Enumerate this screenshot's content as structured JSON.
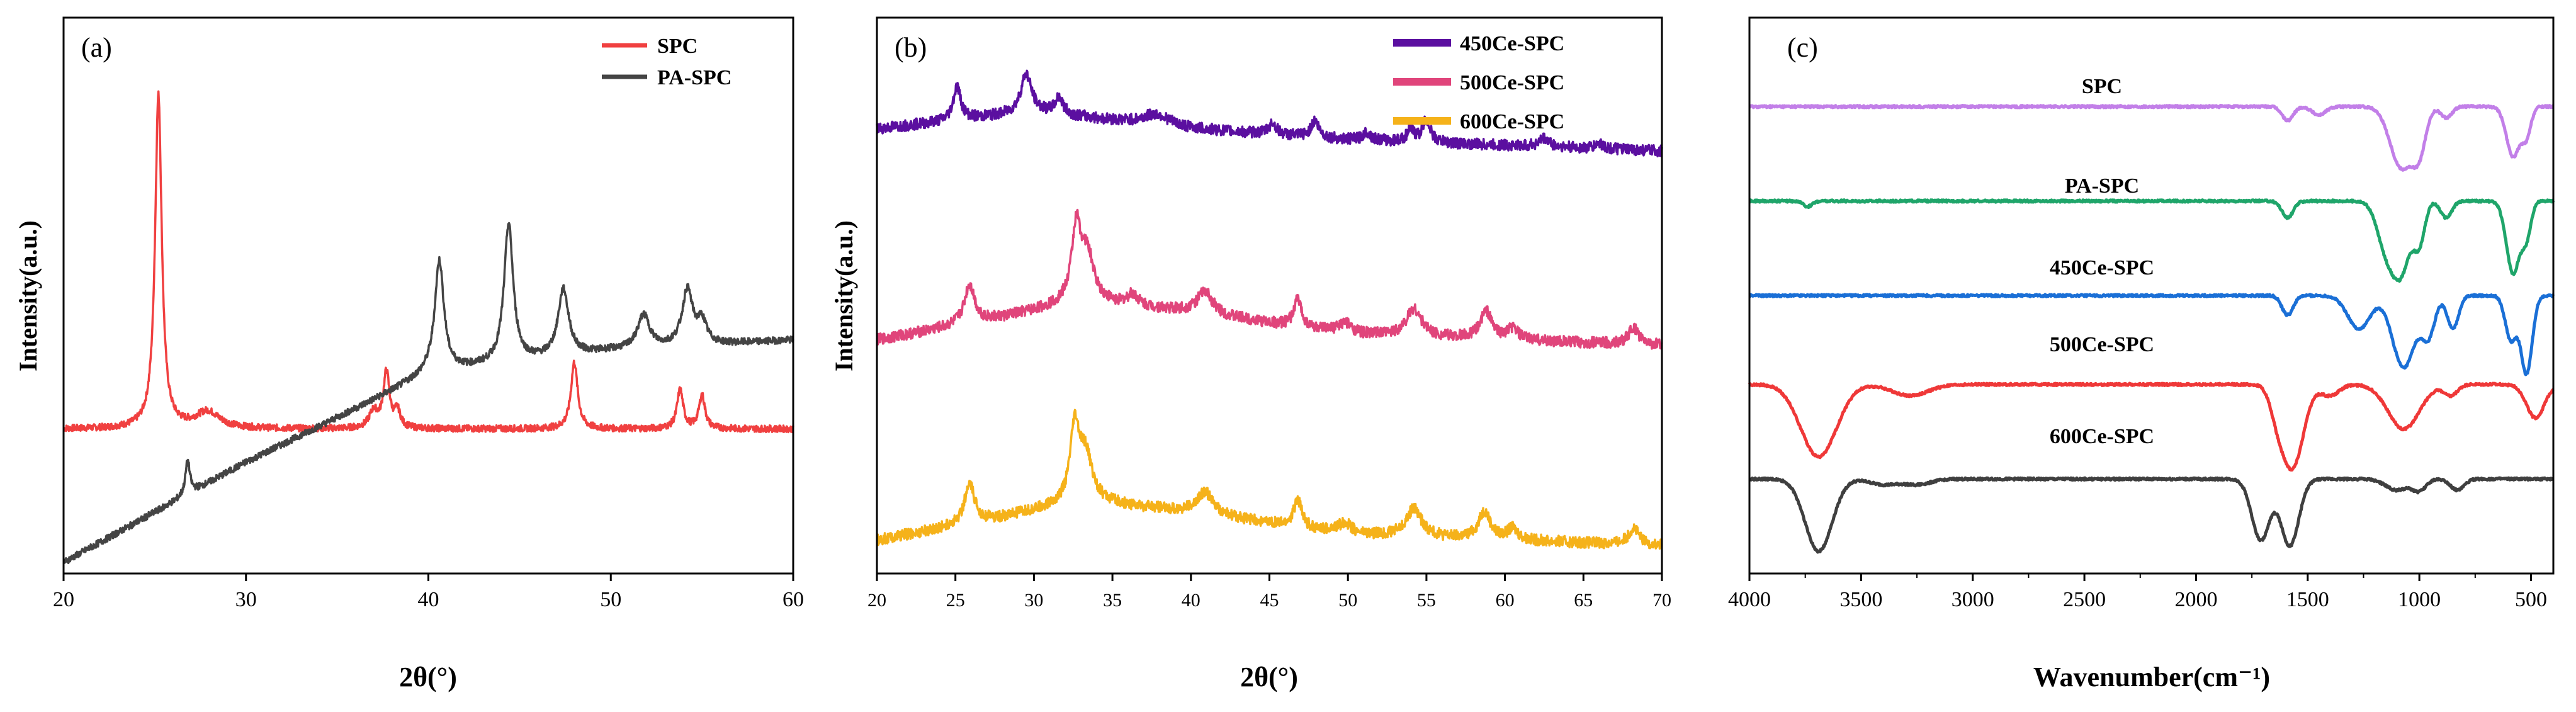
{
  "chart_data": [
    {
      "panel": "(a)",
      "type": "line",
      "xlabel": "2θ(°)",
      "ylabel": "Intensity(a.u.)",
      "xlim": [
        20,
        60
      ],
      "xticks": [
        "20",
        "30",
        "40",
        "50",
        "60"
      ],
      "legend": "top-right",
      "series": [
        {
          "name": "SPC",
          "color": "#f04040",
          "baseline": 0.26,
          "peaks": [
            [
              25.2,
              0.6,
              0.22
            ],
            [
              27.9,
              0.03,
              0.8
            ],
            [
              37.0,
              0.03,
              0.3
            ],
            [
              37.7,
              0.1,
              0.2
            ],
            [
              38.3,
              0.03,
              0.2
            ],
            [
              48.0,
              0.12,
              0.22
            ],
            [
              53.8,
              0.07,
              0.2
            ],
            [
              55.0,
              0.06,
              0.2
            ]
          ]
        },
        {
          "name": "PA-SPC",
          "color": "#444444",
          "baseline": 0.0,
          "trend": [
            [
              20,
              0.02
            ],
            [
              30,
              0.2
            ],
            [
              40,
              0.36
            ],
            [
              50,
              0.4
            ],
            [
              60,
              0.42
            ]
          ],
          "peaks": [
            [
              26.8,
              0.06,
              0.15
            ],
            [
              40.6,
              0.2,
              0.3
            ],
            [
              44.4,
              0.25,
              0.3
            ],
            [
              47.4,
              0.12,
              0.35
            ],
            [
              51.8,
              0.06,
              0.4
            ],
            [
              54.2,
              0.1,
              0.35
            ],
            [
              55.0,
              0.04,
              0.3
            ]
          ]
        }
      ]
    },
    {
      "panel": "(b)",
      "type": "line",
      "xlabel": "2θ(°)",
      "ylabel": "Intensity(a.u.)",
      "xlim": [
        20,
        70
      ],
      "xticks": [
        "20",
        "25",
        "30",
        "35",
        "40",
        "45",
        "50",
        "55",
        "60",
        "65",
        "70"
      ],
      "legend": "top-right",
      "series": [
        {
          "name": "450Ce-SPC",
          "color": "#5b0fa0",
          "baseline": 0.8,
          "trend": [
            [
              20,
              0.0
            ],
            [
              30,
              0.03
            ],
            [
              40,
              0.0
            ],
            [
              50,
              -0.02
            ],
            [
              70,
              -0.04
            ]
          ],
          "peaks": [
            [
              25.1,
              0.06,
              0.3
            ],
            [
              29.5,
              0.07,
              0.4
            ],
            [
              31.6,
              0.03,
              0.3
            ],
            [
              37.8,
              0.02,
              1.0
            ],
            [
              45.2,
              0.02,
              0.3
            ],
            [
              47.9,
              0.03,
              0.3
            ],
            [
              51.2,
              0.015,
              0.3
            ],
            [
              54.0,
              0.02,
              0.3
            ],
            [
              55.0,
              0.04,
              0.3
            ],
            [
              62.5,
              0.015,
              0.4
            ],
            [
              66.0,
              0.01,
              0.3
            ]
          ]
        },
        {
          "name": "500Ce-SPC",
          "color": "#e0457b",
          "baseline": 0.42,
          "trend": [
            [
              20,
              0.0
            ],
            [
              28,
              0.04
            ],
            [
              33,
              0.07
            ],
            [
              40,
              0.05
            ],
            [
              50,
              0.01
            ],
            [
              70,
              -0.01
            ]
          ],
          "peaks": [
            [
              25.9,
              0.07,
              0.4
            ],
            [
              32.7,
              0.13,
              0.35
            ],
            [
              33.4,
              0.08,
              0.5
            ],
            [
              36.3,
              0.02,
              0.4
            ],
            [
              40.9,
              0.04,
              0.6
            ],
            [
              46.8,
              0.05,
              0.3
            ],
            [
              49.8,
              0.02,
              0.5
            ],
            [
              54.2,
              0.05,
              0.6
            ],
            [
              58.8,
              0.05,
              0.45
            ],
            [
              60.5,
              0.02,
              0.4
            ],
            [
              68.2,
              0.03,
              0.4
            ]
          ]
        },
        {
          "name": "600Ce-SPC",
          "color": "#f5b21a",
          "baseline": 0.06,
          "trend": [
            [
              20,
              0.0
            ],
            [
              28,
              0.04
            ],
            [
              33,
              0.07
            ],
            [
              40,
              0.05
            ],
            [
              50,
              0.01
            ],
            [
              70,
              -0.01
            ]
          ],
          "peaks": [
            [
              25.9,
              0.07,
              0.4
            ],
            [
              32.6,
              0.13,
              0.35
            ],
            [
              33.3,
              0.08,
              0.5
            ],
            [
              40.9,
              0.04,
              0.6
            ],
            [
              46.8,
              0.05,
              0.3
            ],
            [
              49.8,
              0.02,
              0.5
            ],
            [
              54.2,
              0.05,
              0.6
            ],
            [
              58.7,
              0.05,
              0.45
            ],
            [
              60.5,
              0.02,
              0.4
            ],
            [
              68.2,
              0.03,
              0.4
            ]
          ]
        }
      ]
    },
    {
      "panel": "(c)",
      "type": "line",
      "xlabel": "Wavenumber(cm⁻¹)",
      "ylabel": "",
      "xlim": [
        4000,
        400
      ],
      "xticks": [
        "4000",
        "3500",
        "3000",
        "2500",
        "2000",
        "1500",
        "1000",
        "500"
      ],
      "legend": "none",
      "series": [
        {
          "name": "SPC",
          "label": "SPC",
          "color": "#c27fe8",
          "baseline": 0.84,
          "dips": [
            [
              1590,
              0.025,
              25
            ],
            [
              1450,
              0.015,
              30
            ],
            [
              1080,
              0.11,
              50
            ],
            [
              1000,
              0.07,
              30
            ],
            [
              880,
              0.02,
              25
            ],
            [
              580,
              0.09,
              30
            ],
            [
              520,
              0.05,
              20
            ]
          ]
        },
        {
          "name": "PA-SPC",
          "label": "PA-SPC",
          "color": "#1fa56a",
          "baseline": 0.67,
          "dips": [
            [
              3740,
              0.01,
              20
            ],
            [
              1590,
              0.03,
              25
            ],
            [
              1150,
              0.08,
              40
            ],
            [
              1080,
              0.12,
              40
            ],
            [
              1000,
              0.07,
              25
            ],
            [
              880,
              0.03,
              25
            ],
            [
              580,
              0.13,
              30
            ],
            [
              520,
              0.06,
              20
            ]
          ]
        },
        {
          "name": "450Ce-SPC",
          "label": "450Ce-SPC",
          "color": "#1a6fd6",
          "baseline": 0.5,
          "dips": [
            [
              1590,
              0.035,
              25
            ],
            [
              1270,
              0.06,
              50
            ],
            [
              1070,
              0.13,
              50
            ],
            [
              960,
              0.07,
              30
            ],
            [
              850,
              0.06,
              25
            ],
            [
              590,
              0.08,
              25
            ],
            [
              520,
              0.14,
              25
            ]
          ]
        },
        {
          "name": "500Ce-SPC",
          "label": "500Ce-SPC",
          "color": "#ef3838",
          "baseline": 0.34,
          "dips": [
            [
              3690,
              0.13,
              80
            ],
            [
              3280,
              0.02,
              80
            ],
            [
              1640,
              0.03,
              30
            ],
            [
              1570,
              0.15,
              50
            ],
            [
              1400,
              0.02,
              40
            ],
            [
              1070,
              0.08,
              70
            ],
            [
              860,
              0.02,
              30
            ],
            [
              480,
              0.06,
              40
            ]
          ]
        },
        {
          "name": "600Ce-SPC",
          "label": "600Ce-SPC",
          "color": "#3f3f3f",
          "baseline": 0.17,
          "dips": [
            [
              3690,
              0.13,
              60
            ],
            [
              3400,
              0.01,
              60
            ],
            [
              3250,
              0.01,
              60
            ],
            [
              1710,
              0.11,
              40
            ],
            [
              1580,
              0.12,
              40
            ],
            [
              1100,
              0.02,
              50
            ],
            [
              1000,
              0.02,
              30
            ],
            [
              830,
              0.02,
              30
            ]
          ]
        }
      ]
    }
  ]
}
